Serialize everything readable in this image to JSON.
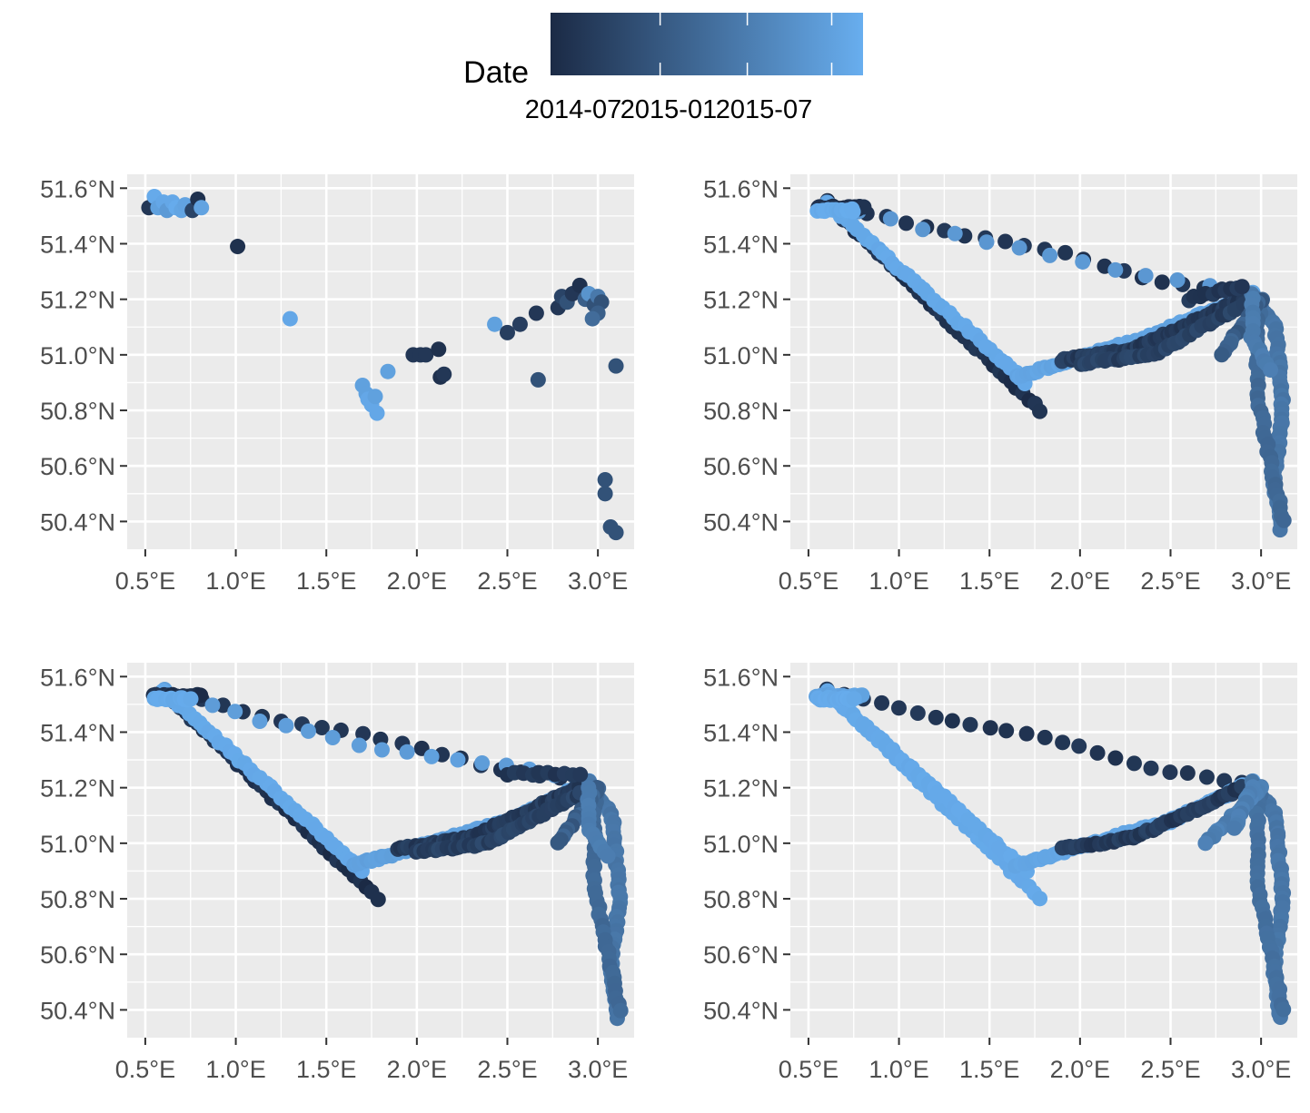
{
  "legend": {
    "title": "Date",
    "labels": [
      "2014-07",
      "2015-01",
      "2015-07"
    ],
    "label_fractions": [
      0.38,
      0.69,
      0.99
    ],
    "color_low": "#1b2a45",
    "color_high": "#68aeef"
  },
  "colors": {
    "panel_bg": "#ebebeb",
    "grid": "#ffffff",
    "tick_text": "#4d4d4d"
  },
  "chart_data": [
    {
      "type": "scatter",
      "panel": "top-left",
      "xlabel": "",
      "ylabel": "",
      "xlim": [
        0.4,
        3.2
      ],
      "ylim": [
        50.3,
        51.65
      ],
      "x_ticks": [
        "0.5°E",
        "1.0°E",
        "1.5°E",
        "2.0°E",
        "2.5°E",
        "3.0°E"
      ],
      "y_ticks": [
        "50.4°N",
        "50.6°N",
        "50.8°N",
        "51.0°N",
        "51.2°N",
        "51.4°N",
        "51.6°N"
      ],
      "grid": true,
      "color_scale": "date",
      "points": [
        [
          0.52,
          51.53,
          0.1
        ],
        [
          0.55,
          51.57,
          0.97
        ],
        [
          0.57,
          51.53,
          0.9
        ],
        [
          0.6,
          51.55,
          0.95
        ],
        [
          0.62,
          51.52,
          0.85
        ],
        [
          0.65,
          51.55,
          0.95
        ],
        [
          0.67,
          51.53,
          0.98
        ],
        [
          0.7,
          51.52,
          0.93
        ],
        [
          0.72,
          51.54,
          0.92
        ],
        [
          0.76,
          51.52,
          0.2
        ],
        [
          0.79,
          51.56,
          0.05
        ],
        [
          0.81,
          51.53,
          0.92
        ],
        [
          1.01,
          51.39,
          0.05
        ],
        [
          1.3,
          51.13,
          0.95
        ],
        [
          1.7,
          50.89,
          0.9
        ],
        [
          1.72,
          50.86,
          0.9
        ],
        [
          1.73,
          50.84,
          0.95
        ],
        [
          1.75,
          50.82,
          0.95
        ],
        [
          1.77,
          50.85,
          0.9
        ],
        [
          1.78,
          50.79,
          0.95
        ],
        [
          1.84,
          50.94,
          0.9
        ],
        [
          1.98,
          51.0,
          0.1
        ],
        [
          2.02,
          51.0,
          0.1
        ],
        [
          2.05,
          51.0,
          0.1
        ],
        [
          2.12,
          51.02,
          0.05
        ],
        [
          2.13,
          50.92,
          0.05
        ],
        [
          2.15,
          50.93,
          0.1
        ],
        [
          2.43,
          51.11,
          0.9
        ],
        [
          2.5,
          51.08,
          0.15
        ],
        [
          2.57,
          51.11,
          0.15
        ],
        [
          2.66,
          51.15,
          0.1
        ],
        [
          2.67,
          50.91,
          0.3
        ],
        [
          2.78,
          51.17,
          0.1
        ],
        [
          2.8,
          51.21,
          0.2
        ],
        [
          2.83,
          51.19,
          0.3
        ],
        [
          2.86,
          51.22,
          0.1
        ],
        [
          2.9,
          51.25,
          0.05
        ],
        [
          2.93,
          51.2,
          0.4
        ],
        [
          2.95,
          51.22,
          0.8
        ],
        [
          2.98,
          51.18,
          0.3
        ],
        [
          3.0,
          51.21,
          0.6
        ],
        [
          3.02,
          51.19,
          0.3
        ],
        [
          3.0,
          51.15,
          0.4
        ],
        [
          2.97,
          51.13,
          0.5
        ],
        [
          3.1,
          50.96,
          0.3
        ],
        [
          3.04,
          50.55,
          0.3
        ],
        [
          3.04,
          50.5,
          0.3
        ],
        [
          3.07,
          50.38,
          0.3
        ],
        [
          3.1,
          50.36,
          0.3
        ]
      ]
    },
    {
      "type": "scatter",
      "panel": "top-right",
      "xlabel": "",
      "ylabel": "",
      "xlim": [
        0.4,
        3.2
      ],
      "ylim": [
        50.3,
        51.65
      ],
      "x_ticks": [
        "0.5°E",
        "1.0°E",
        "1.5°E",
        "2.0°E",
        "2.5°E",
        "3.0°E"
      ],
      "y_ticks": [
        "50.4°N",
        "50.6°N",
        "50.8°N",
        "51.0°N",
        "51.2°N",
        "51.4°N",
        "51.6°N"
      ],
      "grid": true,
      "color_scale": "date",
      "tracks": [
        {
          "path": [
            [
              0.6,
              51.55
            ],
            [
              1.78,
              50.8
            ]
          ],
          "count": 38,
          "t": [
            0.0,
            0.12
          ]
        },
        {
          "path": [
            [
              0.6,
              51.55
            ],
            [
              1.2,
              51.45
            ],
            [
              1.95,
              51.36
            ],
            [
              2.4,
              51.27
            ],
            [
              2.9,
              51.22
            ]
          ],
          "count": 22,
          "t": [
            0.05,
            0.12
          ]
        },
        {
          "path": [
            [
              0.6,
              51.55
            ],
            [
              1.1,
              51.46
            ],
            [
              1.7,
              51.38
            ],
            [
              2.25,
              51.3
            ],
            [
              2.9,
              51.23
            ]
          ],
          "count": 14,
          "t": [
            0.8,
            0.85
          ]
        },
        {
          "path": [
            [
              0.6,
              51.55
            ],
            [
              1.7,
              50.9
            ]
          ],
          "count": 40,
          "t": [
            0.95,
            0.97
          ]
        },
        {
          "path": [
            [
              1.65,
              50.92
            ],
            [
              2.4,
              51.07
            ],
            [
              2.95,
              51.22
            ]
          ],
          "count": 70,
          "t": [
            0.9,
            0.95
          ]
        },
        {
          "path": [
            [
              1.9,
              50.98
            ],
            [
              2.3,
              51.02
            ],
            [
              2.9,
              51.2
            ]
          ],
          "count": 60,
          "t": [
            0.05,
            0.2
          ]
        },
        {
          "path": [
            [
              2.0,
              50.97
            ],
            [
              2.4,
              51.0
            ],
            [
              2.9,
              51.18
            ]
          ],
          "count": 40,
          "t": [
            0.1,
            0.25
          ]
        },
        {
          "path": [
            [
              2.95,
              51.22
            ],
            [
              3.08,
              51.1
            ],
            [
              3.12,
              50.8
            ],
            [
              3.07,
              50.55
            ],
            [
              3.11,
              50.37
            ]
          ],
          "count": 55,
          "t": [
            0.55,
            0.6
          ]
        },
        {
          "path": [
            [
              3.0,
              51.2
            ],
            [
              2.98,
              51.1
            ],
            [
              2.98,
              50.85
            ],
            [
              3.05,
              50.62
            ],
            [
              3.12,
              50.4
            ]
          ],
          "count": 35,
          "t": [
            0.45,
            0.5
          ]
        },
        {
          "path": [
            [
              3.0,
              51.2
            ],
            [
              2.78,
              51.0
            ]
          ],
          "count": 16,
          "t": [
            0.3,
            0.5
          ]
        },
        {
          "path": [
            [
              2.95,
              51.2
            ],
            [
              2.95,
              51.05
            ],
            [
              3.05,
              50.95
            ]
          ],
          "count": 14,
          "t": [
            0.6,
            0.65
          ]
        },
        {
          "path": [
            [
              0.55,
              51.53
            ],
            [
              0.8,
              51.53
            ]
          ],
          "count": 20,
          "t": [
            0.0,
            0.1
          ]
        },
        {
          "path": [
            [
              0.55,
              51.52
            ],
            [
              0.75,
              51.52
            ]
          ],
          "count": 14,
          "t": [
            0.95,
            0.99
          ]
        },
        {
          "path": [
            [
              2.6,
              51.2
            ],
            [
              2.9,
              51.25
            ]
          ],
          "count": 10,
          "t": [
            0.05,
            0.15
          ]
        }
      ]
    },
    {
      "type": "scatter",
      "panel": "bottom-left",
      "xlabel": "",
      "ylabel": "",
      "xlim": [
        0.4,
        3.2
      ],
      "ylim": [
        50.3,
        51.65
      ],
      "x_ticks": [
        "0.5°E",
        "1.0°E",
        "1.5°E",
        "2.0°E",
        "2.5°E",
        "3.0°E"
      ],
      "y_ticks": [
        "50.4°N",
        "50.6°N",
        "50.8°N",
        "51.0°N",
        "51.2°N",
        "51.4°N",
        "51.6°N"
      ],
      "grid": true,
      "color_scale": "date",
      "tracks": [
        {
          "path": [
            [
              0.6,
              51.55
            ],
            [
              1.78,
              50.8
            ]
          ],
          "count": 38,
          "t": [
            0.0,
            0.12
          ]
        },
        {
          "path": [
            [
              0.6,
              51.55
            ],
            [
              1.2,
              51.45
            ],
            [
              1.95,
              51.36
            ],
            [
              2.4,
              51.27
            ],
            [
              2.9,
              51.22
            ]
          ],
          "count": 22,
          "t": [
            0.05,
            0.12
          ]
        },
        {
          "path": [
            [
              0.6,
              51.55
            ],
            [
              1.1,
              51.45
            ],
            [
              1.7,
              51.35
            ],
            [
              2.25,
              51.3
            ],
            [
              2.6,
              51.27
            ],
            [
              2.9,
              51.23
            ]
          ],
          "count": 18,
          "t": [
            0.85,
            0.9
          ]
        },
        {
          "path": [
            [
              0.6,
              51.55
            ],
            [
              1.7,
              50.9
            ]
          ],
          "count": 40,
          "t": [
            0.95,
            0.97
          ]
        },
        {
          "path": [
            [
              1.65,
              50.92
            ],
            [
              2.5,
              51.08
            ],
            [
              2.95,
              51.22
            ]
          ],
          "count": 70,
          "t": [
            0.88,
            0.92
          ]
        },
        {
          "path": [
            [
              1.9,
              50.98
            ],
            [
              2.3,
              51.02
            ],
            [
              2.9,
              51.2
            ]
          ],
          "count": 60,
          "t": [
            0.05,
            0.2
          ]
        },
        {
          "path": [
            [
              2.0,
              50.97
            ],
            [
              2.4,
              51.0
            ],
            [
              2.9,
              51.18
            ]
          ],
          "count": 45,
          "t": [
            0.1,
            0.25
          ]
        },
        {
          "path": [
            [
              2.95,
              51.22
            ],
            [
              3.08,
              51.1
            ],
            [
              3.12,
              50.8
            ],
            [
              3.07,
              50.55
            ],
            [
              3.11,
              50.37
            ]
          ],
          "count": 55,
          "t": [
            0.55,
            0.6
          ]
        },
        {
          "path": [
            [
              3.0,
              51.2
            ],
            [
              2.98,
              51.1
            ],
            [
              2.98,
              50.85
            ],
            [
              3.05,
              50.62
            ],
            [
              3.12,
              50.4
            ]
          ],
          "count": 35,
          "t": [
            0.45,
            0.5
          ]
        },
        {
          "path": [
            [
              3.0,
              51.2
            ],
            [
              2.78,
              51.0
            ]
          ],
          "count": 16,
          "t": [
            0.3,
            0.5
          ]
        },
        {
          "path": [
            [
              2.95,
              51.2
            ],
            [
              2.95,
              51.05
            ],
            [
              3.05,
              50.95
            ]
          ],
          "count": 14,
          "t": [
            0.6,
            0.65
          ]
        },
        {
          "path": [
            [
              0.55,
              51.53
            ],
            [
              0.8,
              51.53
            ]
          ],
          "count": 20,
          "t": [
            0.0,
            0.1
          ]
        },
        {
          "path": [
            [
              0.55,
              51.52
            ],
            [
              0.75,
              51.52
            ]
          ],
          "count": 14,
          "t": [
            0.95,
            0.99
          ]
        },
        {
          "path": [
            [
              2.5,
              51.25
            ],
            [
              2.9,
              51.25
            ]
          ],
          "count": 10,
          "t": [
            0.05,
            0.15
          ]
        }
      ]
    },
    {
      "type": "scatter",
      "panel": "bottom-right",
      "xlabel": "",
      "ylabel": "",
      "xlim": [
        0.4,
        3.2
      ],
      "ylim": [
        50.3,
        51.65
      ],
      "x_ticks": [
        "0.5°E",
        "1.0°E",
        "1.5°E",
        "2.0°E",
        "2.5°E",
        "3.0°E"
      ],
      "y_ticks": [
        "50.4°N",
        "50.6°N",
        "50.8°N",
        "51.0°N",
        "51.2°N",
        "51.4°N",
        "51.6°N"
      ],
      "grid": true,
      "color_scale": "date",
      "tracks": [
        {
          "path": [
            [
              0.6,
              51.55
            ],
            [
              1.78,
              50.8
            ]
          ],
          "count": 38,
          "t": [
            0.95,
            0.97
          ]
        },
        {
          "path": [
            [
              0.6,
              51.55
            ],
            [
              1.2,
              51.45
            ],
            [
              1.95,
              51.36
            ],
            [
              2.4,
              51.27
            ],
            [
              2.9,
              51.22
            ]
          ],
          "count": 24,
          "t": [
            0.05,
            0.12
          ]
        },
        {
          "path": [
            [
              0.6,
              51.55
            ],
            [
              1.7,
              50.9
            ]
          ],
          "count": 40,
          "t": [
            0.95,
            0.97
          ]
        },
        {
          "path": [
            [
              1.65,
              50.92
            ],
            [
              2.5,
              51.08
            ],
            [
              2.95,
              51.22
            ]
          ],
          "count": 80,
          "t": [
            0.92,
            0.95
          ]
        },
        {
          "path": [
            [
              1.9,
              50.98
            ],
            [
              2.3,
              51.02
            ],
            [
              2.9,
              51.2
            ]
          ],
          "count": 50,
          "t": [
            0.05,
            0.2
          ]
        },
        {
          "path": [
            [
              2.95,
              51.22
            ],
            [
              3.08,
              51.1
            ],
            [
              3.12,
              50.8
            ],
            [
              3.07,
              50.55
            ],
            [
              3.11,
              50.37
            ]
          ],
          "count": 55,
          "t": [
            0.55,
            0.6
          ]
        },
        {
          "path": [
            [
              3.0,
              51.2
            ],
            [
              2.98,
              51.1
            ],
            [
              2.98,
              50.85
            ],
            [
              3.05,
              50.62
            ],
            [
              3.12,
              50.4
            ]
          ],
          "count": 35,
          "t": [
            0.5,
            0.55
          ]
        },
        {
          "path": [
            [
              3.0,
              51.2
            ],
            [
              2.7,
              51.0
            ]
          ],
          "count": 20,
          "t": [
            0.6,
            0.7
          ]
        },
        {
          "path": [
            [
              2.95,
              51.2
            ],
            [
              2.85,
              51.05
            ]
          ],
          "count": 14,
          "t": [
            0.6,
            0.7
          ]
        },
        {
          "path": [
            [
              0.55,
              51.53
            ],
            [
              0.8,
              51.53
            ]
          ],
          "count": 20,
          "t": [
            0.9,
            0.95
          ]
        },
        {
          "path": [
            [
              0.55,
              51.52
            ],
            [
              0.75,
              51.52
            ]
          ],
          "count": 14,
          "t": [
            0.95,
            0.99
          ]
        }
      ]
    }
  ]
}
